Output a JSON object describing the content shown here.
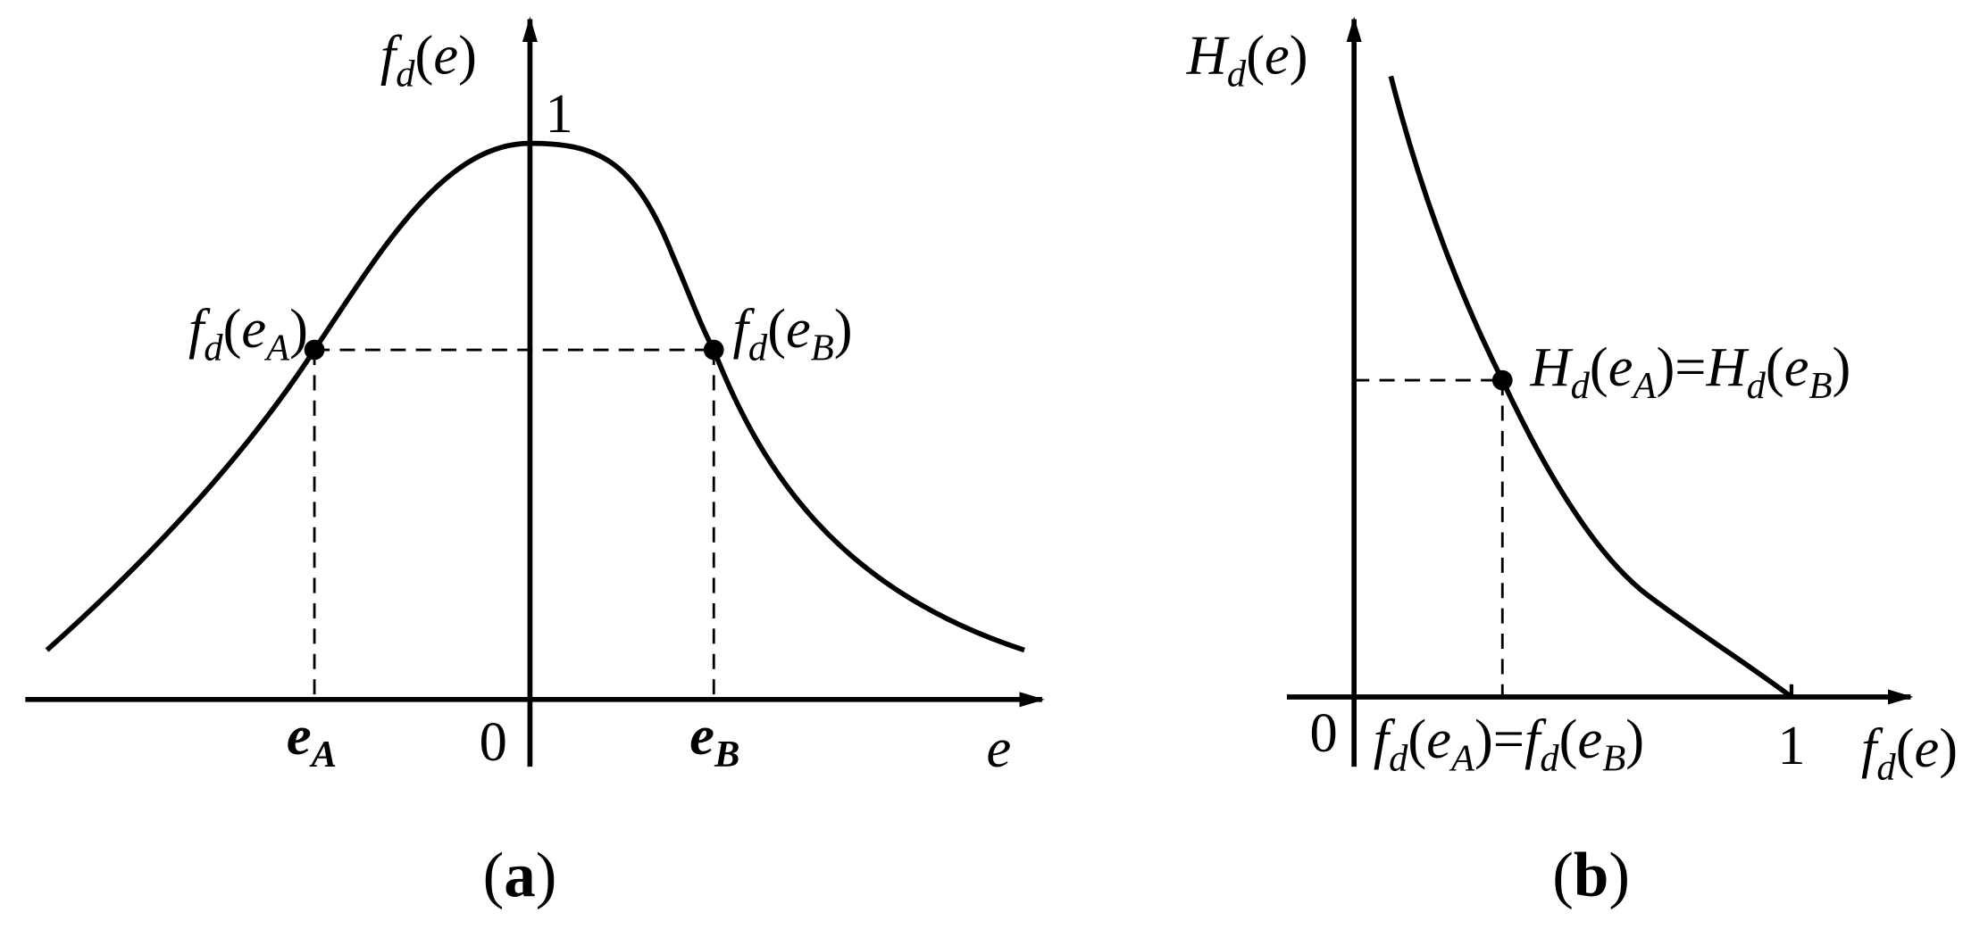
{
  "panel_a": {
    "labels": [
      {
        "runs": [
          {
            "i": "f"
          },
          {
            "s": "d"
          },
          {
            "r": "("
          },
          {
            "i": "e"
          },
          {
            "r": ")"
          }
        ]
      },
      {
        "runs": [
          {
            "r": "1"
          }
        ]
      },
      {
        "runs": [
          {
            "i": "f"
          },
          {
            "s": "d"
          },
          {
            "r": "("
          },
          {
            "i": "e"
          },
          {
            "s": "A"
          },
          {
            "r": ")"
          }
        ]
      },
      {
        "runs": [
          {
            "i": "f"
          },
          {
            "s": "d"
          },
          {
            "r": "("
          },
          {
            "i": "e"
          },
          {
            "s": "B"
          },
          {
            "r": ")"
          }
        ]
      },
      {
        "runs": [
          {
            "b": "e"
          },
          {
            "bs": "A"
          }
        ]
      },
      {
        "runs": [
          {
            "r": "0"
          }
        ]
      },
      {
        "runs": [
          {
            "b": "e"
          },
          {
            "bs": "B"
          }
        ]
      },
      {
        "runs": [
          {
            "i": "e"
          }
        ]
      },
      {
        "runs": [
          {
            "r": "("
          },
          {
            "rb": "a"
          },
          {
            "r": ")"
          }
        ]
      }
    ]
  },
  "panel_b": {
    "labels": [
      {
        "runs": [
          {
            "i": "H"
          },
          {
            "s": "d"
          },
          {
            "r": "("
          },
          {
            "i": "e"
          },
          {
            "r": ")"
          }
        ]
      },
      {
        "runs": [
          {
            "i": "H"
          },
          {
            "s": "d"
          },
          {
            "r": "("
          },
          {
            "i": "e"
          },
          {
            "s": "A"
          },
          {
            "r": ")="
          },
          {
            "i": "H"
          },
          {
            "s": "d"
          },
          {
            "r": "("
          },
          {
            "i": "e"
          },
          {
            "s": "B"
          },
          {
            "r": ")"
          }
        ]
      },
      {
        "runs": [
          {
            "r": "0"
          }
        ]
      },
      {
        "runs": [
          {
            "i": "f"
          },
          {
            "s": "d"
          },
          {
            "r": "("
          },
          {
            "i": "e"
          },
          {
            "s": "A"
          },
          {
            "r": ")="
          },
          {
            "i": "f"
          },
          {
            "s": "d"
          },
          {
            "r": "("
          },
          {
            "i": "e"
          },
          {
            "s": "B"
          },
          {
            "r": ")"
          }
        ]
      },
      {
        "runs": [
          {
            "r": "1"
          }
        ]
      },
      {
        "runs": [
          {
            "i": "f"
          },
          {
            "s": "d"
          },
          {
            "r": "("
          },
          {
            "i": "e"
          },
          {
            "r": ")"
          }
        ]
      },
      {
        "runs": [
          {
            "r": "("
          },
          {
            "rb": "b"
          },
          {
            "r": ")"
          }
        ]
      }
    ]
  }
}
